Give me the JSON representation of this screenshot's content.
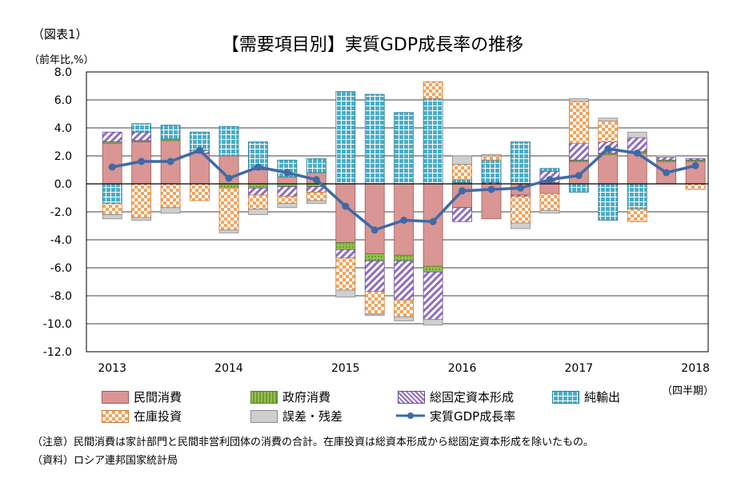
{
  "figure_label": "（図表1）",
  "title": "【需要項目別】実質GDP成長率の推移",
  "unit_label": "（前年比,%）",
  "quarter_label": "（四半期）",
  "note": "（注意）民間消費は家計部門と民間非営利団体の消費の合計。在庫投資は総資本形成から総固定資本形成を除いたもの。",
  "source": "（資料）ロシア連邦国家統計局",
  "colors": {
    "private_consumption": "#d99694",
    "government": "#92c050",
    "fixed_capital": "#b89ed6",
    "net_exports": "#4bacc6",
    "inventory": "#f5a35b",
    "discrepancy": "#cfcfcf",
    "gdp_line": "#3e6aa6"
  },
  "legend": [
    {
      "key": "private_consumption",
      "label": "民間消費"
    },
    {
      "key": "government",
      "label": "政府消費"
    },
    {
      "key": "fixed_capital",
      "label": "総固定資本形成"
    },
    {
      "key": "net_exports",
      "label": "純輸出"
    },
    {
      "key": "inventory",
      "label": "在庫投資"
    },
    {
      "key": "discrepancy",
      "label": "誤差・残差"
    },
    {
      "key": "gdp",
      "label": "実質GDP成長率"
    }
  ],
  "chart_data": {
    "type": "bar",
    "stacked": true,
    "title": "【需要項目別】実質GDP成長率の推移",
    "ylabel": "（前年比,%）",
    "ylim": [
      -12,
      8
    ],
    "yticks": [
      "8.0",
      "6.0",
      "4.0",
      "2.0",
      "0.0",
      "-2.0",
      "-4.0",
      "-6.0",
      "-8.0",
      "-10.0",
      "-12.0"
    ],
    "xtick_labels": [
      "2013",
      "2014",
      "2015",
      "2016",
      "2017",
      "2018"
    ],
    "categories": [
      "2013Q1",
      "2013Q2",
      "2013Q3",
      "2013Q4",
      "2014Q1",
      "2014Q2",
      "2014Q3",
      "2014Q4",
      "2015Q1",
      "2015Q2",
      "2015Q3",
      "2015Q4",
      "2016Q1",
      "2016Q2",
      "2016Q3",
      "2016Q4",
      "2017Q1",
      "2017Q2",
      "2017Q3",
      "2017Q4",
      "2018Q1"
    ],
    "series": [
      {
        "name": "民間消費",
        "key": "private_consumption",
        "values": [
          2.9,
          3.0,
          3.1,
          2.2,
          2.0,
          1.0,
          0.5,
          0.8,
          -4.2,
          -5.0,
          -5.1,
          -5.9,
          -1.7,
          -2.5,
          -0.8,
          -0.7,
          1.6,
          2.1,
          2.2,
          1.6,
          1.6
        ]
      },
      {
        "name": "政府消費",
        "key": "government",
        "values": [
          0.1,
          0.1,
          0.1,
          0.0,
          -0.3,
          -0.3,
          -0.2,
          -0.2,
          -0.5,
          -0.5,
          -0.4,
          -0.4,
          0.1,
          0.0,
          0.0,
          0.1,
          0.1,
          0.1,
          0.1,
          0.1,
          0.1
        ]
      },
      {
        "name": "総固定資本形成",
        "key": "fixed_capital",
        "values": [
          0.7,
          0.6,
          0.0,
          0.2,
          0.0,
          -0.5,
          -0.7,
          -0.4,
          -0.6,
          -2.2,
          -2.8,
          -3.4,
          -1.0,
          0.1,
          -0.1,
          0.8,
          1.2,
          0.8,
          1.0,
          0.2,
          0.1
        ]
      },
      {
        "name": "純輸出",
        "key": "net_exports",
        "values": [
          -1.4,
          0.6,
          1.0,
          1.3,
          2.1,
          2.0,
          1.2,
          1.0,
          6.6,
          6.4,
          5.1,
          6.1,
          0.2,
          1.6,
          3.0,
          0.2,
          -0.6,
          -2.6,
          -1.8,
          0.0,
          0.0
        ]
      },
      {
        "name": "在庫投資",
        "key": "inventory",
        "values": [
          -0.8,
          -2.4,
          -1.7,
          -1.2,
          -3.0,
          -1.0,
          -0.5,
          -0.6,
          -2.3,
          -1.6,
          -1.2,
          1.2,
          1.1,
          0.3,
          -1.9,
          -1.2,
          3.0,
          1.5,
          -0.9,
          0.0,
          -0.4
        ]
      },
      {
        "name": "誤差・残差",
        "key": "discrepancy",
        "values": [
          -0.3,
          -0.2,
          -0.4,
          0.0,
          -0.2,
          -0.4,
          -0.3,
          -0.2,
          -0.5,
          -0.1,
          -0.3,
          -0.4,
          0.6,
          0.1,
          -0.4,
          -0.2,
          0.2,
          0.2,
          0.4,
          0.1,
          0.0
        ]
      }
    ],
    "line": {
      "name": "実質GDP成長率",
      "key": "gdp",
      "values": [
        1.2,
        1.6,
        1.6,
        2.4,
        0.4,
        1.2,
        0.8,
        0.3,
        -1.6,
        -3.3,
        -2.6,
        -2.7,
        -0.5,
        -0.4,
        -0.3,
        0.3,
        0.6,
        2.5,
        2.2,
        0.8,
        1.3
      ]
    },
    "grid": true,
    "legend_position": "bottom"
  }
}
